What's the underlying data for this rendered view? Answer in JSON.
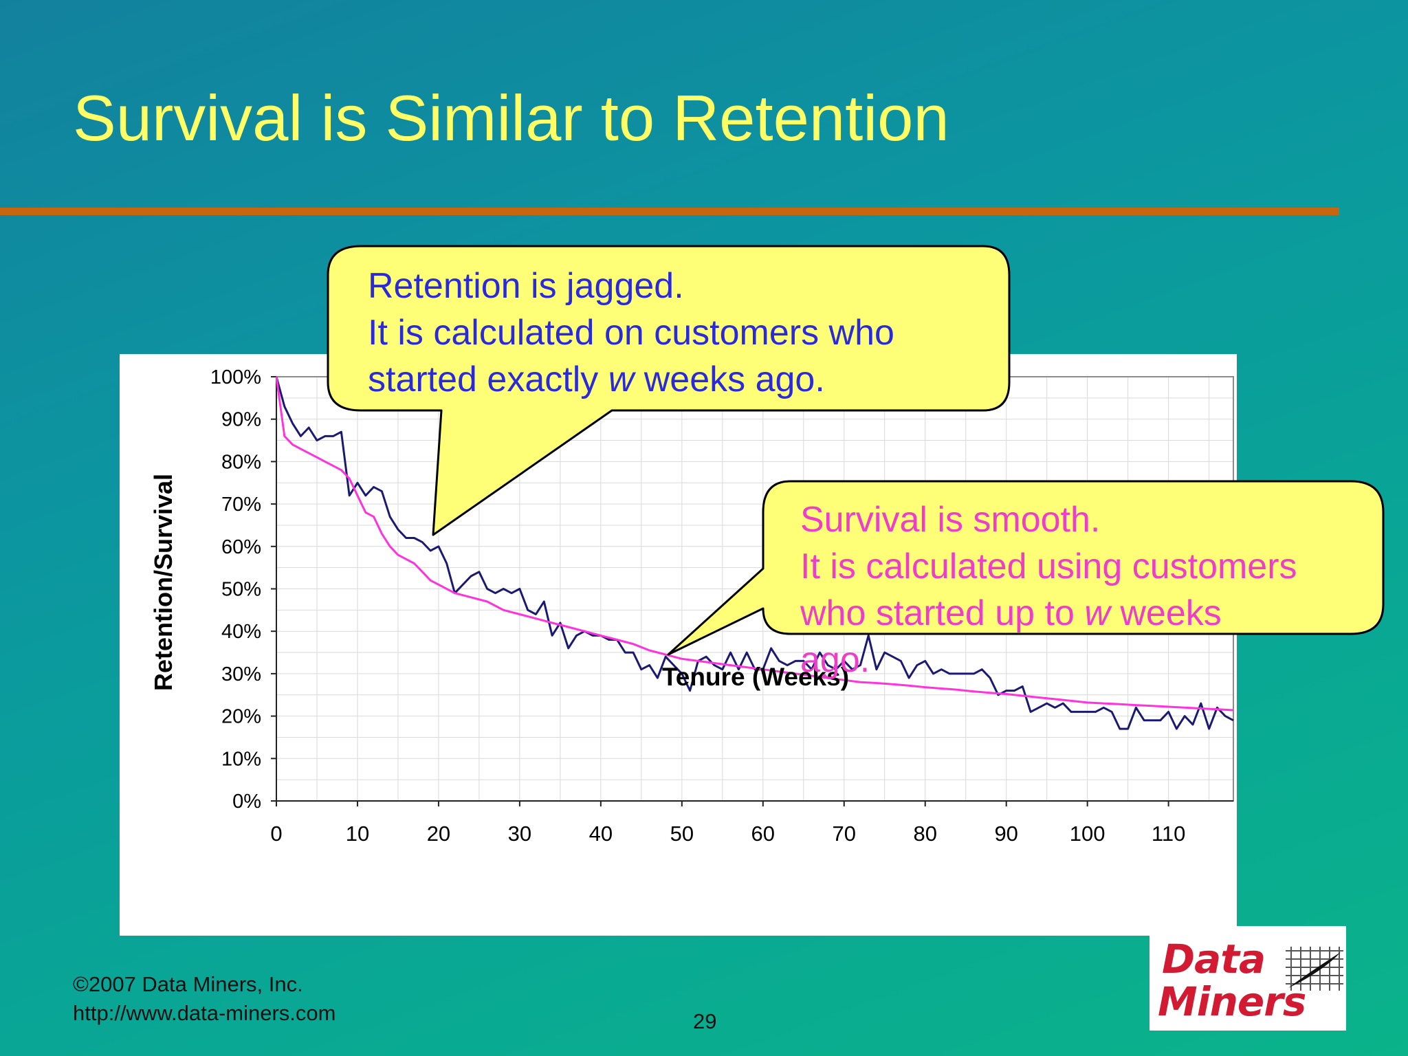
{
  "slide": {
    "title": "Survival is Similar to Retention",
    "page_number": "29",
    "copyright": "©2007 Data Miners, Inc.",
    "website": "http://www.data-miners.com"
  },
  "logo": {
    "line1": "Data",
    "line2": "Miners",
    "icon": "grid-quill-icon"
  },
  "callouts": {
    "retention": {
      "lines": [
        "Retention is jagged.",
        "It is calculated on customers who"
      ],
      "line3_before": "started exactly ",
      "line3_italic": "w",
      "line3_after": " weeks ago.",
      "color": "#2a2adb",
      "fill": "#ffff77"
    },
    "survival": {
      "lines": [
        "Survival is smooth.",
        "It is calculated using customers"
      ],
      "line3_before": "who started up to ",
      "line3_italic": "w",
      "line3_after": " weeks",
      "line4": "ago.",
      "color": "#ee3ec8",
      "fill": "#ffff77"
    }
  },
  "chart_data": {
    "type": "line",
    "xlabel": "Tenure (Weeks)",
    "ylabel": "Retention/Survival",
    "xlim": [
      0,
      118
    ],
    "ylim": [
      0,
      1
    ],
    "x_ticks": [
      0,
      10,
      20,
      30,
      40,
      50,
      60,
      70,
      80,
      90,
      100,
      110
    ],
    "x_tick_labels": [
      "0",
      "10",
      "20",
      "30",
      "40",
      "50",
      "60",
      "70",
      "80",
      "90",
      "100",
      "110"
    ],
    "y_ticks": [
      0,
      0.1,
      0.2,
      0.3,
      0.4,
      0.5,
      0.6,
      0.7,
      0.8,
      0.9,
      1.0
    ],
    "y_tick_labels": [
      "0%",
      "10%",
      "20%",
      "30%",
      "40%",
      "50%",
      "60%",
      "70%",
      "80%",
      "90%",
      "100%"
    ],
    "grid": true,
    "series": [
      {
        "color": "#1a1a72",
        "x": [
          0,
          1,
          2,
          3,
          4,
          5,
          6,
          7,
          8,
          9,
          10,
          11,
          12,
          13,
          14,
          15,
          16,
          17,
          18,
          19,
          20,
          21,
          22,
          23,
          24,
          25,
          26,
          27,
          28,
          29,
          30,
          31,
          32,
          33,
          34,
          35,
          36,
          37,
          38,
          39,
          40,
          41,
          42,
          43,
          44,
          45,
          46,
          47,
          48,
          49,
          50,
          51,
          52,
          53,
          54,
          55,
          56,
          57,
          58,
          59,
          60,
          61,
          62,
          63,
          64,
          65,
          66,
          67,
          68,
          69,
          70,
          71,
          72,
          73,
          74,
          75,
          76,
          77,
          78,
          79,
          80,
          81,
          82,
          83,
          84,
          85,
          86,
          87,
          88,
          89,
          90,
          91,
          92,
          93,
          94,
          95,
          96,
          97,
          98,
          99,
          100,
          101,
          102,
          103,
          104,
          105,
          106,
          107,
          108,
          109,
          110,
          111,
          112,
          113,
          114,
          115,
          116,
          117,
          118
        ],
        "values": [
          1.0,
          0.93,
          0.89,
          0.86,
          0.88,
          0.85,
          0.86,
          0.86,
          0.87,
          0.72,
          0.75,
          0.72,
          0.74,
          0.73,
          0.67,
          0.64,
          0.62,
          0.62,
          0.61,
          0.59,
          0.6,
          0.56,
          0.49,
          0.51,
          0.53,
          0.54,
          0.5,
          0.49,
          0.5,
          0.49,
          0.5,
          0.45,
          0.44,
          0.47,
          0.39,
          0.42,
          0.36,
          0.39,
          0.4,
          0.39,
          0.39,
          0.38,
          0.38,
          0.35,
          0.35,
          0.31,
          0.32,
          0.29,
          0.34,
          0.32,
          0.3,
          0.26,
          0.33,
          0.34,
          0.32,
          0.31,
          0.35,
          0.31,
          0.35,
          0.31,
          0.31,
          0.36,
          0.33,
          0.32,
          0.33,
          0.33,
          0.31,
          0.35,
          0.32,
          0.31,
          0.33,
          0.31,
          0.32,
          0.39,
          0.31,
          0.35,
          0.34,
          0.33,
          0.29,
          0.32,
          0.33,
          0.3,
          0.31,
          0.3,
          0.3,
          0.3,
          0.3,
          0.31,
          0.29,
          0.25,
          0.26,
          0.26,
          0.27,
          0.21,
          0.22,
          0.23,
          0.22,
          0.23,
          0.21,
          0.21,
          0.21,
          0.21,
          0.22,
          0.21,
          0.17,
          0.17,
          0.22,
          0.19,
          0.19,
          0.19,
          0.21,
          0.17,
          0.2,
          0.18,
          0.23,
          0.17,
          0.22,
          0.2,
          0.19
        ]
      },
      {
        "color": "#ff33dd",
        "x": [
          0,
          1,
          2,
          3,
          4,
          5,
          6,
          7,
          8,
          9,
          10,
          11,
          12,
          13,
          14,
          15,
          16,
          17,
          18,
          19,
          20,
          22,
          24,
          26,
          28,
          30,
          32,
          34,
          36,
          38,
          40,
          42,
          44,
          46,
          48,
          50,
          52,
          54,
          56,
          58,
          60,
          62,
          64,
          66,
          68,
          70,
          72,
          74,
          76,
          78,
          80,
          82,
          84,
          86,
          88,
          90,
          92,
          94,
          96,
          98,
          100,
          102,
          104,
          106,
          108,
          110,
          112,
          114,
          116,
          118
        ],
        "values": [
          1.0,
          0.86,
          0.84,
          0.83,
          0.82,
          0.81,
          0.8,
          0.79,
          0.78,
          0.76,
          0.72,
          0.68,
          0.67,
          0.63,
          0.6,
          0.58,
          0.57,
          0.56,
          0.54,
          0.52,
          0.51,
          0.49,
          0.48,
          0.47,
          0.45,
          0.44,
          0.43,
          0.42,
          0.41,
          0.4,
          0.39,
          0.38,
          0.37,
          0.355,
          0.345,
          0.335,
          0.33,
          0.325,
          0.32,
          0.315,
          0.31,
          0.305,
          0.3,
          0.295,
          0.29,
          0.285,
          0.28,
          0.278,
          0.275,
          0.272,
          0.268,
          0.265,
          0.262,
          0.258,
          0.255,
          0.252,
          0.248,
          0.244,
          0.24,
          0.236,
          0.232,
          0.23,
          0.228,
          0.226,
          0.224,
          0.222,
          0.22,
          0.218,
          0.216,
          0.214
        ]
      }
    ]
  }
}
